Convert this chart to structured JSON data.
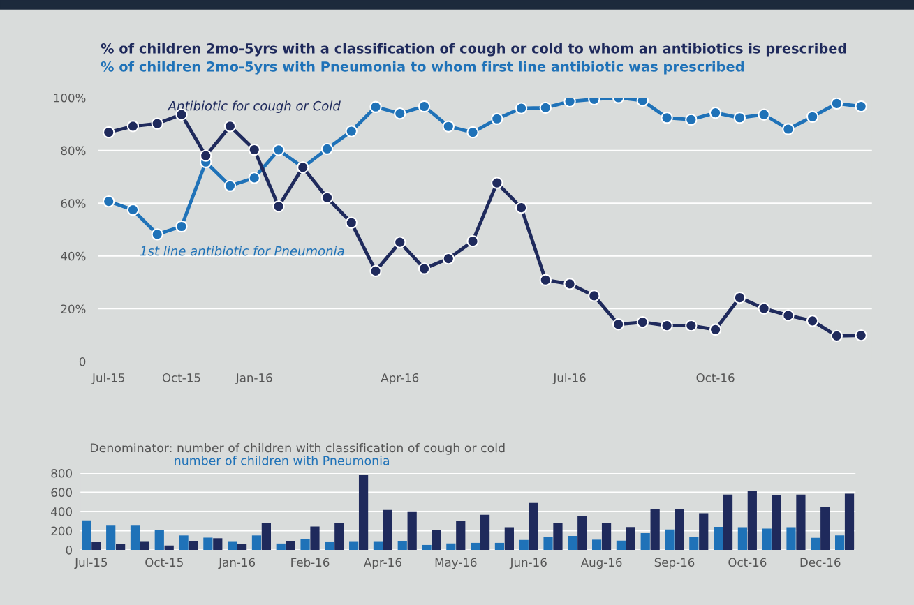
{
  "chart_data": [
    {
      "type": "line",
      "title": "% of children 2mo-5yrs with a classification of cough or cold to whom an antibiotics is prescribed",
      "subtitle": "% of children 2mo-5yrs with Pneumonia to whom first line antibiotic was prescribed",
      "categories": [
        "Jul-15",
        null,
        null,
        "Oct-15",
        null,
        null,
        "Jan-16",
        null,
        null,
        null,
        null,
        null,
        "Apr-16",
        null,
        null,
        null,
        null,
        null,
        null,
        "Jul-16",
        null,
        null,
        null,
        null,
        null,
        "Oct-16",
        null,
        null,
        null,
        null,
        null,
        null
      ],
      "series": [
        {
          "name": "Antibiotic for cough or Cold",
          "color": "#1f2a5c",
          "values": [
            86.9,
            89.2,
            90.2,
            93.6,
            78,
            89.2,
            80.3,
            58.8,
            73.6,
            62.1,
            52.6,
            34.3,
            45.2,
            35.2,
            39.0,
            45.6,
            67.7,
            58.3,
            30.9,
            29.4,
            24.9,
            14.1,
            14.9,
            13.6,
            13.6,
            12.1,
            24.2,
            20.1,
            17.5,
            15.4,
            9.7,
            9.9
          ]
        },
        {
          "name": "1st line antibiotic for Pneumonia",
          "color": "#1f72b8",
          "values": [
            60.7,
            57.5,
            48.2,
            51.2,
            75.6,
            66.6,
            69.6,
            80.2,
            73.6,
            80.6,
            87.3,
            96.5,
            94.0,
            96.7,
            89.1,
            86.9,
            92.0,
            96.0,
            96.2,
            98.6,
            99.4,
            100,
            98.9,
            92.4,
            91.7,
            94.3,
            92.4,
            93.6,
            88.1,
            92.8,
            97.8,
            96.7
          ]
        }
      ],
      "ylim": [
        0,
        100
      ],
      "yticks": [
        0,
        {
          "value": 20,
          "label": "20%"
        },
        {
          "value": 40,
          "label": "40%"
        },
        {
          "value": 60,
          "label": "60%"
        },
        {
          "value": 80,
          "label": "80%"
        },
        {
          "value": 100,
          "label": "100%"
        }
      ],
      "grid": "y",
      "legend": false,
      "marker": "circle",
      "line_style": "solid"
    },
    {
      "type": "bar",
      "title": "Denominator: number of children with classification of cough or cold",
      "subtitle": "number of children with Pneumonia",
      "categories": [
        "Jul-15",
        null,
        null,
        "Oct-15",
        null,
        null,
        "Jan-16",
        null,
        null,
        "Feb-16",
        null,
        null,
        "Apr-16",
        null,
        null,
        "May-16",
        null,
        null,
        "Jun-16",
        null,
        null,
        "Aug-16",
        null,
        null,
        "Sep-16",
        null,
        null,
        "Oct-16",
        null,
        null,
        "Dec-16",
        null
      ],
      "series": [
        {
          "color": "#1f72b8",
          "values": [
            308,
            253,
            253,
            209,
            151,
            128,
            84,
            151,
            67,
            113,
            81,
            84,
            84,
            91,
            52,
            68,
            74,
            74,
            104,
            133,
            146,
            107,
            97,
            175,
            214,
            139,
            240,
            236,
            223,
            236,
            126,
            152
          ]
        },
        {
          "color": "#1f2a5c",
          "values": [
            81,
            67,
            84,
            47,
            90,
            122,
            61,
            285,
            93,
            244,
            282,
            779,
            416,
            395,
            207,
            301,
            366,
            236,
            489,
            278,
            356,
            285,
            239,
            427,
            430,
            382,
            576,
            615,
            573,
            576,
            447,
            586
          ]
        }
      ],
      "ylim": [
        0,
        800
      ],
      "yticks": [
        0,
        200,
        400,
        600,
        800
      ],
      "grid": "y",
      "legend": false
    }
  ]
}
